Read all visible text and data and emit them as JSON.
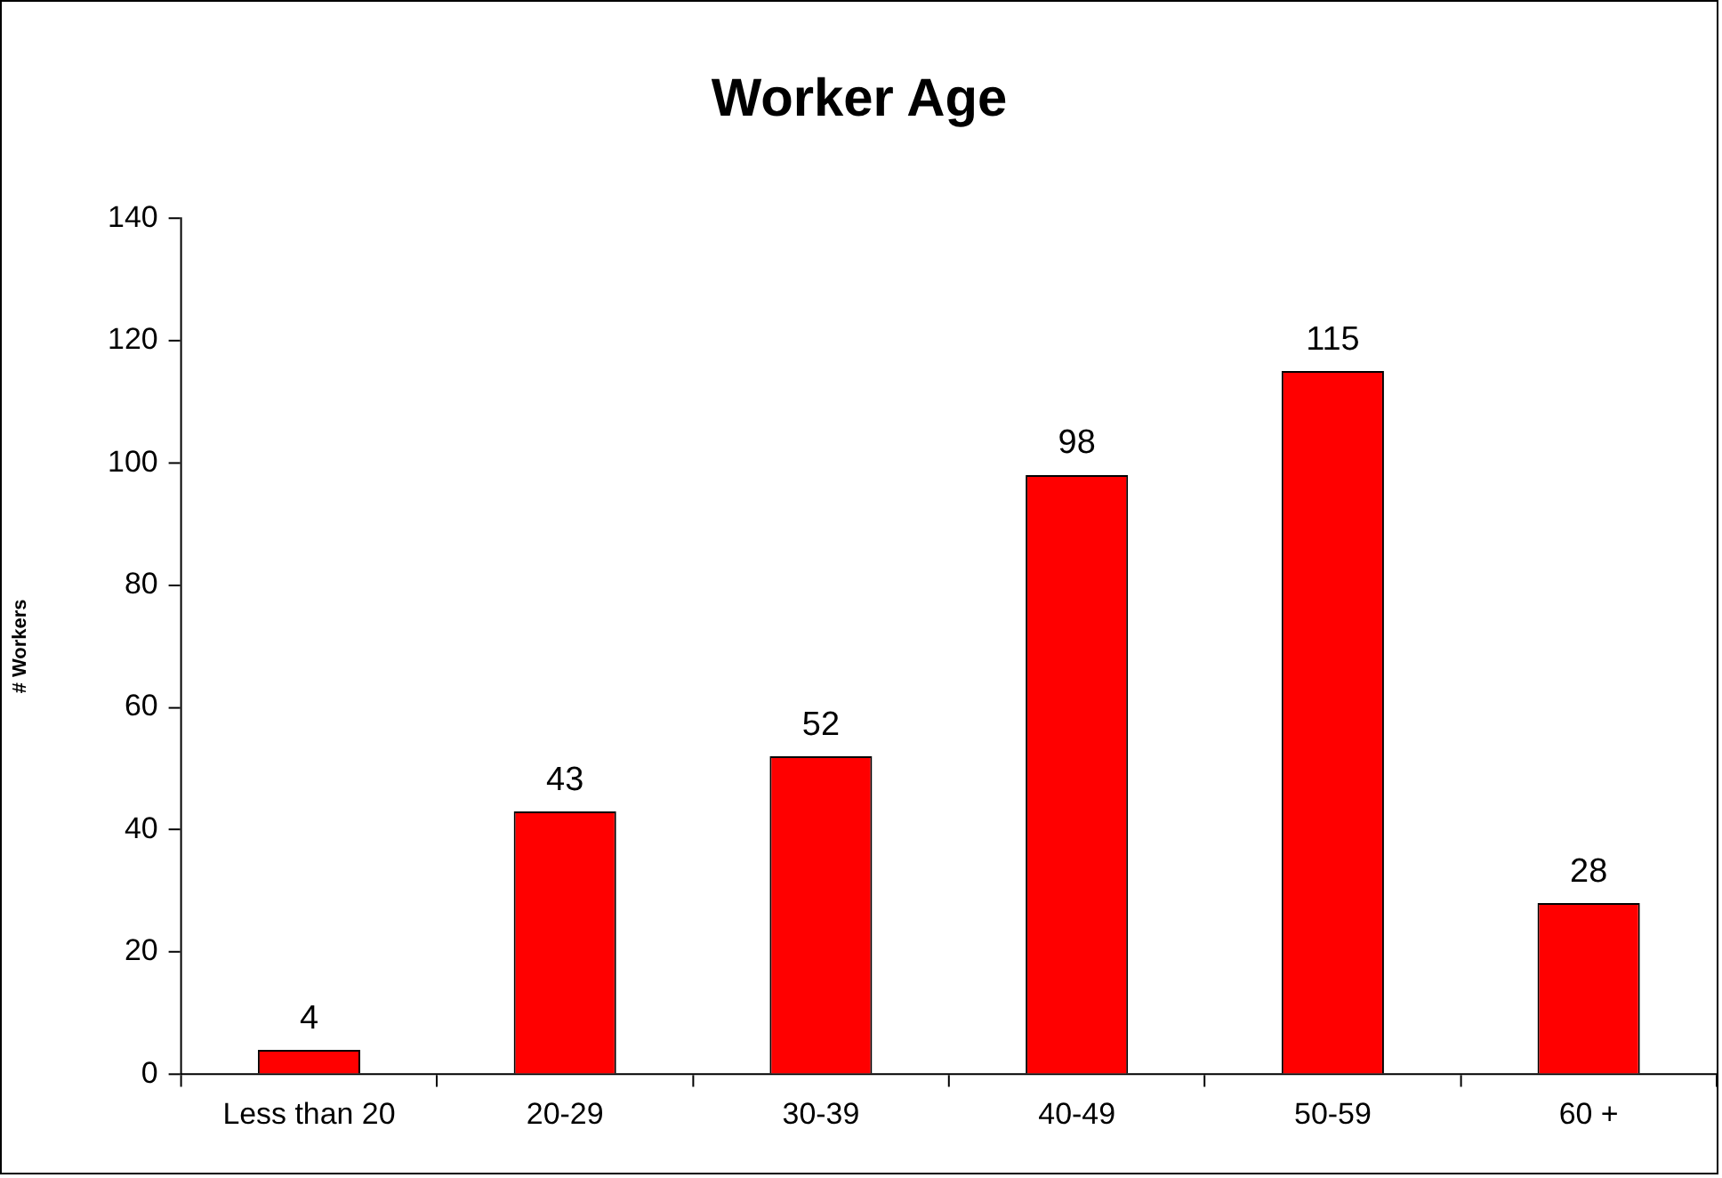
{
  "chart_data": {
    "type": "bar",
    "title": "Worker Age",
    "ylabel": "# Workers",
    "categories": [
      "Less than 20",
      "20-29",
      "30-39",
      "40-49",
      "50-59",
      "60 +"
    ],
    "values": [
      4,
      43,
      52,
      98,
      115,
      28
    ],
    "color": "#ff0000",
    "ylim": [
      0,
      140
    ],
    "yticks": [
      0,
      20,
      40,
      60,
      80,
      100,
      120,
      140
    ],
    "grid": false,
    "legend": false,
    "data_labels": true
  }
}
